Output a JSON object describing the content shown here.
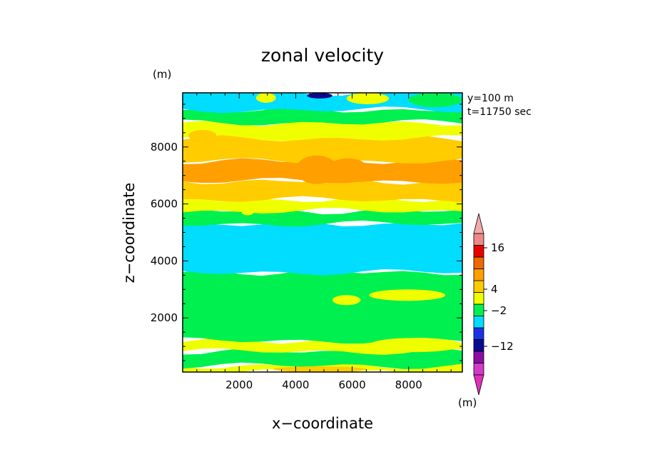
{
  "chart_data": {
    "type": "contour",
    "title": "zonal velocity",
    "xlabel": "x−coordinate",
    "ylabel": "z−coordinate",
    "x_unit": "(m)",
    "y_unit": "(m)",
    "annotations": [
      "y=100 m",
      "t=11750 sec"
    ],
    "xlim": [
      0,
      9900
    ],
    "ylim": [
      100,
      9900
    ],
    "x_ticks": [
      "2000",
      "4000",
      "6000",
      "8000"
    ],
    "y_ticks": [
      "2000",
      "4000",
      "6000",
      "8000"
    ],
    "colorbar": {
      "labels": [
        "16",
        "4",
        "−2",
        "−12"
      ],
      "unit": "(m)",
      "levels": [
        -16,
        -12,
        -8,
        -4,
        -2,
        0,
        2,
        4,
        8,
        12,
        16,
        20
      ],
      "colors": [
        "#d23ac8",
        "#8a0ea2",
        "#0a0a90",
        "#1a32e6",
        "#00ddff",
        "#00f050",
        "#f0ff00",
        "#ffcc00",
        "#ff9f00",
        "#ee6a00",
        "#e80000",
        "#ee8888"
      ],
      "arrow_low_color": "#e030b8",
      "arrow_high_color": "#f2aaaa"
    },
    "bands": [
      {
        "z": [
          100,
          320
        ],
        "value": 2,
        "color": "#f0ff00"
      },
      {
        "z": [
          320,
          820
        ],
        "value": -1,
        "color": "#00f050"
      },
      {
        "z": [
          820,
          1200
        ],
        "value": 2,
        "color": "#f0ff00"
      },
      {
        "z": [
          1200,
          3600
        ],
        "value": -1,
        "color": "#00f050"
      },
      {
        "z": [
          3600,
          5300
        ],
        "value": -3,
        "color": "#00ddff"
      },
      {
        "z": [
          5300,
          5750
        ],
        "value": -1,
        "color": "#00f050"
      },
      {
        "z": [
          5750,
          6150
        ],
        "value": 2,
        "color": "#f0ff00"
      },
      {
        "z": [
          6150,
          6800
        ],
        "value": 5,
        "color": "#ffcc00"
      },
      {
        "z": [
          6800,
          7500
        ],
        "value": 8,
        "color": "#ff9f00"
      },
      {
        "z": [
          7500,
          8300
        ],
        "value": 5,
        "color": "#ffcc00"
      },
      {
        "z": [
          8300,
          8850
        ],
        "value": 2,
        "color": "#f0ff00"
      },
      {
        "z": [
          8850,
          9300
        ],
        "value": -1,
        "color": "#00f050"
      },
      {
        "z": [
          9300,
          9900
        ],
        "value": -3,
        "color": "#00ddff"
      }
    ],
    "patches": [
      {
        "x": [
          4000,
          5500
        ],
        "z": [
          6700,
          7700
        ],
        "value": 8,
        "color": "#ff9f00"
      },
      {
        "x": [
          5200,
          6500
        ],
        "z": [
          7000,
          7600
        ],
        "value": 8,
        "color": "#ff9f00"
      },
      {
        "x": [
          8700,
          9900
        ],
        "z": [
          6800,
          7400
        ],
        "value": 8,
        "color": "#ff9f00"
      },
      {
        "x": [
          200,
          1200
        ],
        "z": [
          8200,
          8600
        ],
        "value": 5,
        "color": "#ffcc00"
      },
      {
        "x": [
          4400,
          5300
        ],
        "z": [
          9700,
          9900
        ],
        "value": -12,
        "color": "#0a0a90"
      },
      {
        "x": [
          2600,
          3300
        ],
        "z": [
          9550,
          9900
        ],
        "value": 2,
        "color": "#f0ff00"
      },
      {
        "x": [
          5800,
          7300
        ],
        "z": [
          9500,
          9900
        ],
        "value": 2,
        "color": "#f0ff00"
      },
      {
        "x": [
          8000,
          9900
        ],
        "z": [
          9400,
          9900
        ],
        "value": -1,
        "color": "#00f050"
      },
      {
        "x": [
          4200,
          9900
        ],
        "z": [
          3900,
          4400
        ],
        "value": -3,
        "color": "#00ddff"
      },
      {
        "x": [
          6600,
          9300
        ],
        "z": [
          2600,
          3000
        ],
        "value": 2,
        "color": "#f0ff00"
      },
      {
        "x": [
          5300,
          6300
        ],
        "z": [
          2450,
          2800
        ],
        "value": 2,
        "color": "#f0ff00"
      },
      {
        "x": [
          6600,
          9900
        ],
        "z": [
          800,
          1300
        ],
        "value": 2,
        "color": "#f0ff00"
      },
      {
        "x": [
          3200,
          6500
        ],
        "z": [
          100,
          300
        ],
        "value": 5,
        "color": "#ffcc00"
      },
      {
        "x": [
          2100,
          2500
        ],
        "z": [
          5600,
          5800
        ],
        "value": 2,
        "color": "#f0ff00"
      }
    ]
  }
}
